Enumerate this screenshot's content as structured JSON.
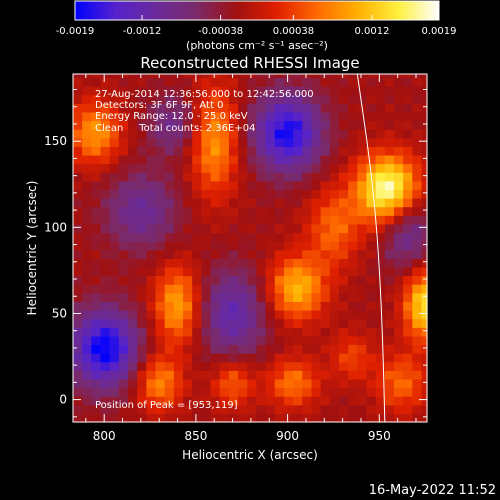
{
  "chart_data": {
    "type": "heatmap",
    "title": "Reconstructed RHESSI Image",
    "xlabel": "Heliocentric X (arcsec)",
    "ylabel": "Heliocentric Y (arcsec)",
    "xlim": [
      783,
      976
    ],
    "ylim": [
      -13,
      189
    ],
    "x_ticks": [
      800,
      850,
      900,
      950
    ],
    "y_ticks": [
      0,
      50,
      100,
      150
    ],
    "colorbar": {
      "min": -0.0019,
      "max": 0.0019,
      "tick_values": [
        -0.0019,
        -0.0012,
        -0.00038,
        0.00038,
        0.0012,
        0.0019
      ],
      "tick_labels": [
        "-0.0019",
        "-0.0012",
        "-0.00038",
        "0.00038",
        "0.0012",
        "0.0019"
      ],
      "units_label": "(photons cm⁻² s⁻¹ asec⁻²)",
      "colors": [
        "#0000ff",
        "#5522cc",
        "#6a2a9a",
        "#7a2a6a",
        "#a01010",
        "#e02000",
        "#ff6a00",
        "#ffb000",
        "#fff040",
        "#ffffff"
      ]
    },
    "annotations": [
      "27-Aug-2014 12:36:56.000 to 12:42:56.000",
      "Detectors: 3F 6F 9F, Att 0",
      "Energy Range: 12.0 - 25.0 keV",
      "Clean     Total counts: 2.36E+04"
    ],
    "peak": {
      "x": 953,
      "y": 119
    },
    "peak_label": "Position of Peak = [953,119]",
    "limb_points": [
      [
        938,
        189
      ],
      [
        946,
        130
      ],
      [
        950,
        80
      ],
      [
        952,
        30
      ],
      [
        953,
        -13
      ]
    ],
    "sources": [
      {
        "x": 955,
        "y": 122,
        "sx": 12,
        "sy": 14,
        "amp": 0.0021
      },
      {
        "x": 975,
        "y": 55,
        "sx": 8,
        "sy": 14,
        "amp": 0.0016
      },
      {
        "x": 905,
        "y": 65,
        "sx": 11,
        "sy": 13,
        "amp": 0.0013
      },
      {
        "x": 903,
        "y": 10,
        "sx": 10,
        "sy": 10,
        "amp": 0.0009
      },
      {
        "x": 795,
        "y": 155,
        "sx": 10,
        "sy": 13,
        "amp": 0.0011
      },
      {
        "x": 840,
        "y": 55,
        "sx": 9,
        "sy": 16,
        "amp": 0.0012
      },
      {
        "x": 830,
        "y": 10,
        "sx": 9,
        "sy": 11,
        "amp": 0.001
      },
      {
        "x": 860,
        "y": 150,
        "sx": 9,
        "sy": 22,
        "amp": 0.0011
      },
      {
        "x": 870,
        "y": 10,
        "sx": 8,
        "sy": 10,
        "amp": 0.0008
      },
      {
        "x": 925,
        "y": 100,
        "sx": 10,
        "sy": 16,
        "amp": 0.0008
      },
      {
        "x": 935,
        "y": 25,
        "sx": 8,
        "sy": 10,
        "amp": 0.0006
      },
      {
        "x": 962,
        "y": 10,
        "sx": 10,
        "sy": 12,
        "amp": 0.0008
      },
      {
        "x": 900,
        "y": 155,
        "sx": 13,
        "sy": 16,
        "amp": -0.0016
      },
      {
        "x": 800,
        "y": 30,
        "sx": 13,
        "sy": 16,
        "amp": -0.0017
      },
      {
        "x": 870,
        "y": 50,
        "sx": 13,
        "sy": 18,
        "amp": -0.001
      },
      {
        "x": 820,
        "y": 110,
        "sx": 14,
        "sy": 16,
        "amp": -0.0008
      },
      {
        "x": 965,
        "y": 100,
        "sx": 10,
        "sy": 16,
        "amp": -0.0009
      },
      {
        "x": 838,
        "y": 160,
        "sx": 10,
        "sy": 12,
        "amp": -0.0007
      }
    ]
  },
  "footer": {
    "timestamp": "16-May-2022 11:52"
  }
}
